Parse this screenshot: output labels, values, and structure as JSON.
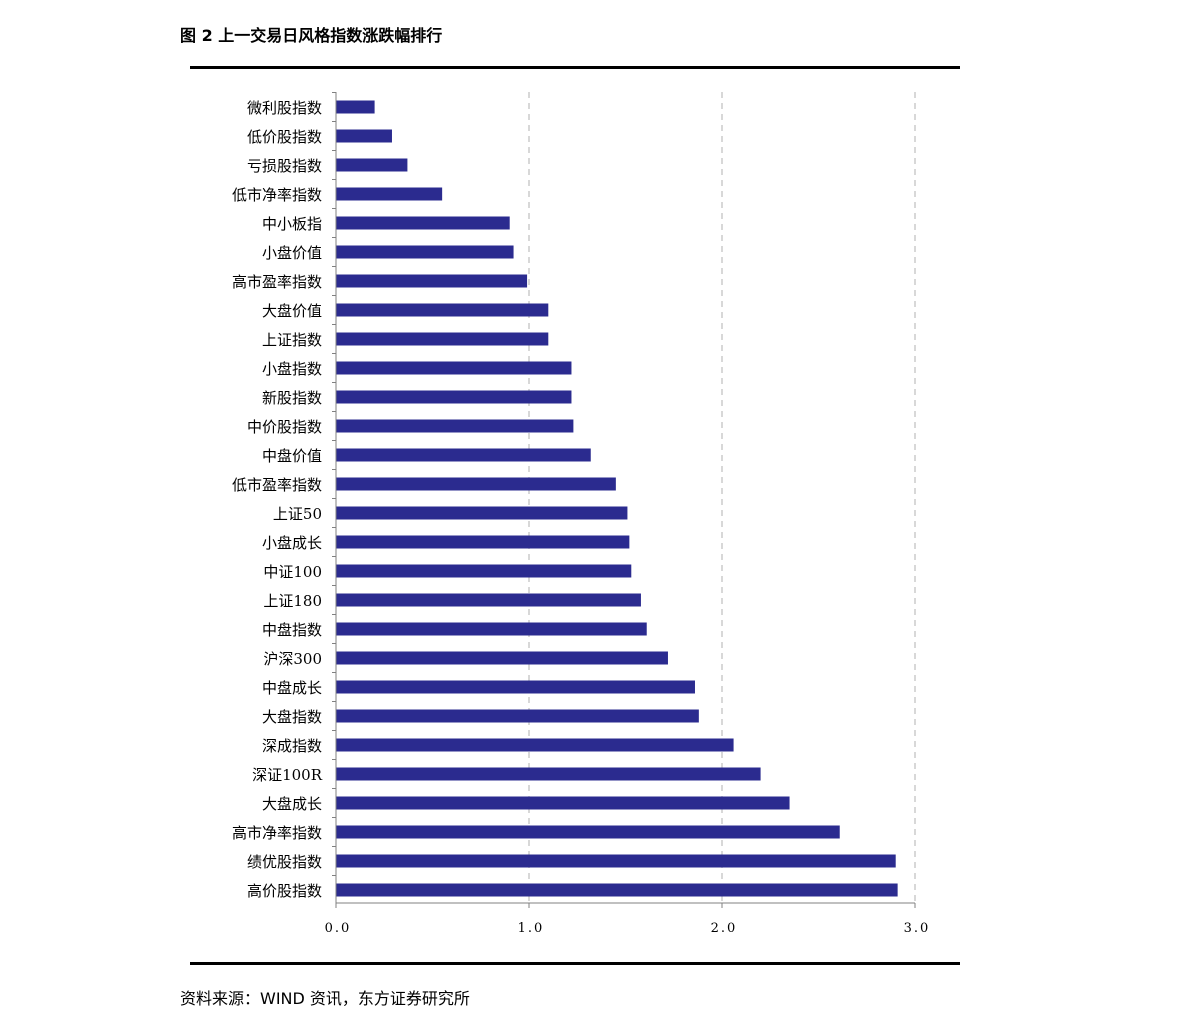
{
  "figure": {
    "title": "图 2  上一交易日风格指数涨跌幅排行",
    "source": "资料来源：WIND 资讯，东方证券研究所"
  },
  "colors": {
    "bar": "#2b2b8f",
    "grid": "#b0b0b0",
    "axis": "#808080",
    "rule": "#000000"
  },
  "chart_data": {
    "type": "bar",
    "orientation": "horizontal",
    "title": "",
    "xlabel": "",
    "ylabel": "",
    "xlim": [
      0,
      3.0
    ],
    "xticks": [
      "0.0",
      "1.0",
      "2.0",
      "3.0"
    ],
    "grid": "vertical dashed",
    "legend": "none",
    "categories": [
      "微利股指数",
      "低价股指数",
      "亏损股指数",
      "低市净率指数",
      "中小板指",
      "小盘价值",
      "高市盈率指数",
      "大盘价值",
      "上证指数",
      "小盘指数",
      "新股指数",
      "中价股指数",
      "中盘价值",
      "低市盈率指数",
      "上证50",
      "小盘成长",
      "中证100",
      "上证180",
      "中盘指数",
      "沪深300",
      "中盘成长",
      "大盘指数",
      "深成指数",
      "深证100R",
      "大盘成长",
      "高市净率指数",
      "绩优股指数",
      "高价股指数"
    ],
    "values": [
      0.2,
      0.29,
      0.37,
      0.55,
      0.9,
      0.92,
      0.99,
      1.1,
      1.1,
      1.22,
      1.22,
      1.23,
      1.32,
      1.45,
      1.51,
      1.52,
      1.53,
      1.58,
      1.61,
      1.72,
      1.86,
      1.88,
      2.06,
      2.2,
      2.35,
      2.61,
      2.9,
      2.91
    ]
  }
}
